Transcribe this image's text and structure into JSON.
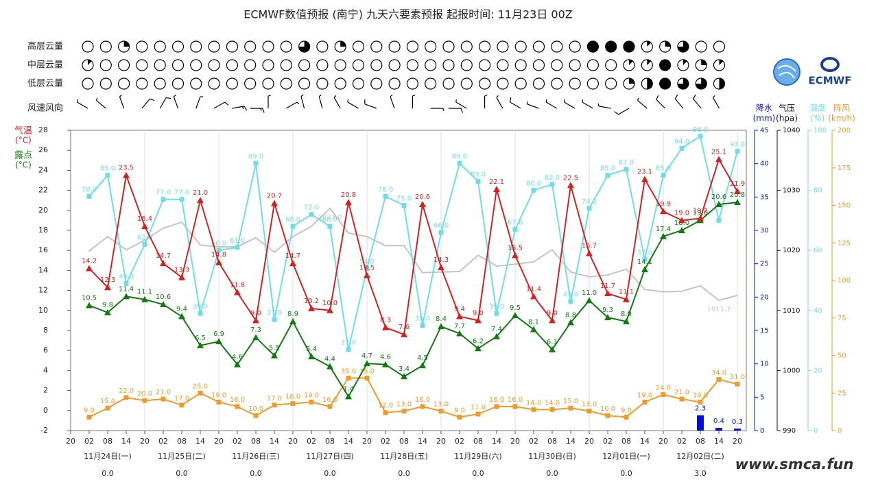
{
  "chart_data": {
    "type": "line",
    "title": "ECMWF数值预报 (南宁) 九天六要素预报 起报时间: 11月23日 00Z",
    "categories": [
      "20",
      "02",
      "08",
      "14",
      "20",
      "02",
      "08",
      "14",
      "20",
      "02",
      "08",
      "14",
      "20",
      "02",
      "08",
      "14",
      "20",
      "02",
      "08",
      "14",
      "20",
      "02",
      "08",
      "14",
      "20",
      "02",
      "08",
      "14",
      "20",
      "02",
      "08",
      "14",
      "20",
      "02",
      "08",
      "14",
      "20"
    ],
    "day_labels": [
      "11月24日(一)",
      "11月25日(二)",
      "11月26日(三)",
      "11月27日(四)",
      "11月28日(五)",
      "11月29日(六)",
      "11月30日(日)",
      "12月01日(一)",
      "12月02日(二)"
    ],
    "daily_precip": {
      "values": [
        0,
        0,
        0,
        0,
        0,
        0,
        0,
        0,
        3
      ],
      "value_labels": [
        "0.0",
        "0.0",
        "0.0",
        "0.0",
        "0.0",
        "0.0",
        "0.0",
        "0.0",
        "3.0"
      ]
    },
    "ylim": [
      -2,
      28
    ],
    "yticks": [
      -2,
      0,
      2,
      4,
      6,
      8,
      10,
      12,
      14,
      16,
      18,
      20,
      22,
      24,
      26,
      28
    ],
    "series": [
      {
        "name": "气温",
        "unit": "(°C)",
        "color": "#d42020",
        "marker": "triangle",
        "values": [
          null,
          14.2,
          12.3,
          23.5,
          18.4,
          14.7,
          13.3,
          21.0,
          14.8,
          11.8,
          9.0,
          20.7,
          14.7,
          10.2,
          10.0,
          20.8,
          13.5,
          8.3,
          7.6,
          20.6,
          14.3,
          9.4,
          9.0,
          22.1,
          15.5,
          11.4,
          9.0,
          22.5,
          15.7,
          11.7,
          11.1,
          23.1,
          19.9,
          19.0,
          19.2,
          25.1,
          21.9
        ],
        "value_labels": [
          null,
          "14.2",
          "12.3",
          "23.5",
          "18.4",
          "14.7",
          "13.3",
          "21.0",
          "14.8",
          "11.8",
          "9.0",
          "20.7",
          "14.7",
          "10.2",
          "10.0",
          "20.8",
          "13.5",
          "8.3",
          "7.6",
          "20.6",
          "14.3",
          "9.4",
          "9.0",
          "22.1",
          "15.5",
          "11.4",
          "9.0",
          "22.5",
          "15.7",
          "11.7",
          "11.1",
          "23.1",
          "19.9",
          "19.0",
          "19.2",
          "25.1",
          "21.9"
        ]
      },
      {
        "name": "露点",
        "unit": "(°C)",
        "color": "#137a13",
        "marker": "triangle",
        "values": [
          null,
          10.5,
          9.8,
          11.4,
          11.1,
          10.6,
          9.4,
          6.5,
          6.9,
          4.6,
          7.3,
          5.5,
          8.9,
          5.4,
          4.4,
          1.4,
          4.7,
          4.6,
          3.4,
          4.5,
          8.4,
          7.7,
          6.2,
          7.4,
          9.5,
          8.1,
          6.1,
          8.8,
          11.0,
          9.3,
          8.9,
          14.1,
          17.4,
          18.0,
          19.0,
          20.6,
          20.8
        ],
        "value_labels": [
          null,
          "10.5",
          "9.8",
          "11.4",
          "11.1",
          "10.6",
          "9.4",
          "6.5",
          "6.9",
          "4.6",
          "7.3",
          "5.5",
          "8.9",
          "5.4",
          "4.4",
          "1.4",
          "4.7",
          "4.6",
          "3.4",
          "4.5",
          "8.4",
          "7.7",
          "6.2",
          "7.4",
          "9.5",
          "8.1",
          "6.1",
          "8.8",
          "11.0",
          "9.3",
          "8.9",
          "14.1",
          "17.4",
          "18.0",
          "19.0",
          "20.6",
          "20.8"
        ]
      },
      {
        "name": "降水",
        "unit": "(mm)",
        "color": "#0010d0",
        "type": "bar",
        "scale": {
          "lim": [
            0,
            45
          ],
          "ticks": [
            0,
            5,
            10,
            15,
            20,
            25,
            30,
            35,
            40,
            45
          ]
        },
        "values": [
          null,
          0,
          0,
          0,
          0,
          0,
          0,
          0,
          0,
          0,
          0,
          0,
          0,
          0,
          0,
          0,
          0,
          0,
          0,
          0,
          0,
          0,
          0,
          0,
          0,
          0,
          0,
          0,
          0,
          0,
          0,
          0,
          0,
          0,
          2.3,
          0.4,
          0.3
        ],
        "value_labels": [
          null,
          null,
          null,
          null,
          null,
          null,
          null,
          null,
          null,
          null,
          null,
          null,
          null,
          null,
          null,
          null,
          null,
          null,
          null,
          null,
          null,
          null,
          null,
          null,
          null,
          null,
          null,
          null,
          null,
          null,
          null,
          null,
          null,
          null,
          "2.3",
          "0.4",
          "0.3"
        ]
      },
      {
        "name": "气压",
        "unit": "(hpa)",
        "color": "#c4c4c4",
        "axis_color": "#111111",
        "marker": "none",
        "scale": {
          "lim": [
            990,
            1040
          ],
          "ticks": [
            990,
            1000,
            1010,
            1020,
            1030,
            1040
          ]
        },
        "values": [
          null,
          1019.9,
          1022.3,
          1020.1,
          1021.7,
          1023.7,
          1024.7,
          1020.9,
          1020.6,
          1020.6,
          1022.1,
          1019.7,
          1022.3,
          1024.0,
          1027.0,
          1022.9,
          1022.3,
          1020.8,
          1020.8,
          1016.3,
          1016.4,
          1016.5,
          1019.2,
          1017.4,
          1017.7,
          1018.1,
          1020.1,
          1016.4,
          1015.6,
          1015.9,
          1016.9,
          1013.5,
          1013.1,
          1013.2,
          1014.1,
          1011.7,
          1012.5
        ],
        "value_labels": [
          null,
          null,
          null,
          null,
          null,
          null,
          null,
          null,
          null,
          null,
          null,
          null,
          null,
          null,
          "1027.0",
          null,
          null,
          null,
          null,
          null,
          null,
          null,
          null,
          null,
          null,
          null,
          null,
          null,
          null,
          null,
          null,
          null,
          null,
          null,
          null,
          "1011.7",
          null
        ]
      },
      {
        "name": "湿度",
        "unit": "(%)",
        "color": "#6fdde6",
        "marker": "square",
        "scale": {
          "lim": [
            0,
            100
          ],
          "ticks": [
            0,
            20,
            40,
            60,
            80,
            100
          ]
        },
        "values": [
          null,
          78,
          85,
          49,
          62,
          77,
          77,
          39,
          60,
          61,
          89,
          37,
          68,
          72,
          68,
          27,
          54,
          78,
          75,
          35,
          66,
          89,
          83,
          39,
          67,
          80,
          82,
          43,
          74,
          85,
          87,
          57,
          85,
          94,
          98,
          70,
          93
        ],
        "value_labels": [
          null,
          "78.0",
          "85.0",
          "49.0",
          "62.0",
          "77.0",
          "77.0",
          "39.0",
          "60.0",
          "61.0",
          "89.0",
          "37.0",
          "68.0",
          "72.0",
          "68.0",
          "27.0",
          "54.0",
          "78.0",
          "75.0",
          "35.0",
          "66.0",
          "89.0",
          "83.0",
          "39.0",
          "67.0",
          "80.0",
          "82.0",
          "43.0",
          "74.0",
          "85.0",
          "87.0",
          "57.0",
          "85.0",
          "94.0",
          "98.0",
          null,
          "93.0"
        ]
      },
      {
        "name": "阵风",
        "unit": "(km/h)",
        "color": "#ef9a2a",
        "marker": "square",
        "scale": {
          "lim": [
            0,
            200
          ],
          "ticks": [
            0,
            25,
            50,
            75,
            100,
            125,
            150,
            175,
            200
          ]
        },
        "values": [
          null,
          9,
          15,
          22,
          20,
          21,
          17,
          25,
          19,
          16,
          10,
          17,
          18,
          19,
          16,
          35,
          35,
          12,
          13,
          16,
          13,
          9,
          11,
          16,
          16,
          14,
          14,
          15,
          13,
          10,
          9,
          19,
          24,
          21,
          19,
          34,
          31
        ],
        "value_labels": [
          null,
          "9.0",
          "15.0",
          "22.0",
          "20.0",
          "21.0",
          "17.0",
          "25.0",
          "19.0",
          "16.0",
          "10.0",
          "17.0",
          "18.0",
          "19.0",
          "16.0",
          "35.0",
          "35.0",
          "12.0",
          "13.0",
          "16.0",
          "13.0",
          "9.0",
          "11.0",
          "16.0",
          "16.0",
          "14.0",
          "14.0",
          "15.0",
          "13.0",
          "10.0",
          "9.0",
          "19.0",
          "24.0",
          "21.0",
          "19.0",
          "34.0",
          "31.0"
        ]
      }
    ],
    "cloud_rows": [
      {
        "label": "高层云量",
        "values": [
          0,
          0,
          0.25,
          0,
          0,
          0,
          0,
          0,
          0,
          0,
          0,
          0,
          0.75,
          0,
          0.25,
          0,
          0,
          0,
          0,
          0,
          0,
          0,
          0,
          0,
          0,
          0,
          0,
          0,
          1,
          1,
          1,
          0.125,
          0.25,
          0.75,
          0,
          0
        ]
      },
      {
        "label": "中层云量",
        "values": [
          0.125,
          0,
          0,
          0,
          0,
          0,
          0,
          0,
          0,
          0,
          0,
          0,
          0,
          0,
          0,
          0,
          0,
          0,
          0,
          0,
          0,
          0,
          0,
          0,
          0,
          0,
          0,
          0,
          0,
          0,
          0.125,
          0.125,
          1,
          0.125,
          0.25,
          0.125
        ]
      },
      {
        "label": "低层云量",
        "values": [
          0,
          0,
          0,
          0,
          0,
          0,
          0,
          0,
          0,
          0,
          0,
          0,
          0,
          0,
          0,
          0,
          0,
          0,
          0,
          0,
          0,
          0,
          0,
          0,
          0,
          0,
          0,
          0,
          0,
          0,
          0.25,
          0.5,
          1,
          0.75,
          0.75,
          0.5
        ]
      }
    ],
    "wind": {
      "label": "风速风向",
      "direction": [
        300,
        310,
        340,
        40,
        30,
        340,
        20,
        60,
        80,
        90,
        0,
        60,
        345,
        345,
        330,
        300,
        290,
        340,
        0,
        90,
        90,
        300,
        0,
        330,
        300,
        290,
        300,
        300,
        300,
        280,
        240,
        310,
        315,
        320,
        320,
        330
      ],
      "speed": [
        2,
        3,
        3,
        4,
        4,
        3,
        3,
        4,
        5,
        5,
        2,
        3,
        3,
        3,
        3,
        2,
        4,
        2,
        2,
        3,
        4,
        2,
        2,
        3,
        4,
        3,
        2,
        3,
        3,
        3,
        4,
        3,
        4,
        4,
        4,
        3
      ]
    },
    "logo_text": "ECMWF",
    "watermark": "www.smca.fun"
  }
}
